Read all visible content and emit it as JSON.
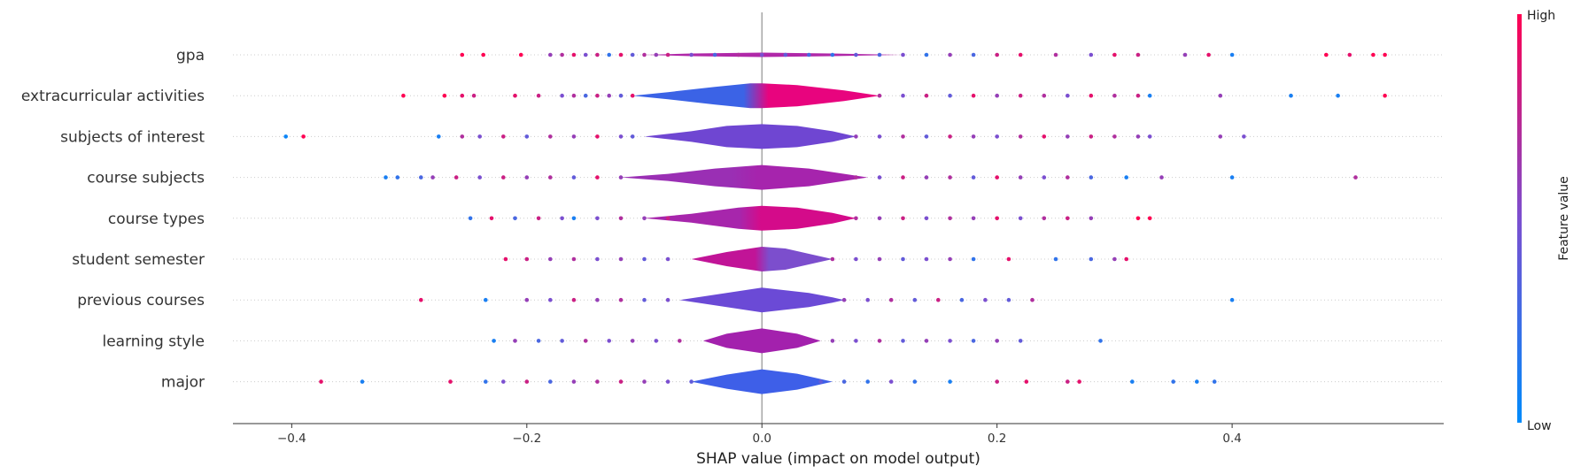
{
  "chart_data": {
    "type": "scatter",
    "subtype": "shap-violin-summary",
    "title": "",
    "xlabel": "SHAP value (impact on model output)",
    "xlim": [
      -0.45,
      0.58
    ],
    "x_ticks": [
      -0.4,
      -0.2,
      0.0,
      0.2,
      0.4
    ],
    "x_tick_labels": [
      "−0.4",
      "−0.2",
      "0.0",
      "0.2",
      "0.4"
    ],
    "grid": "dotted horizontal lines per feature",
    "zero_line": true,
    "colorbar": {
      "label": "Feature value",
      "high_label": "High",
      "low_label": "Low",
      "low_color": "#008bfb",
      "mid_color": "#7b4fd0",
      "high_color": "#ff0052"
    },
    "features": [
      {
        "name": "gpa",
        "violin_half_height": [
          [
            -0.1,
            0
          ],
          [
            -0.06,
            1.5
          ],
          [
            0.0,
            2.5
          ],
          [
            0.06,
            1.5
          ],
          [
            0.12,
            0
          ]
        ],
        "violin_color_low_side": "#b028a8",
        "violin_color_high_side": "#b028a8",
        "points": [
          [
            -0.255,
            1
          ],
          [
            -0.237,
            1
          ],
          [
            -0.205,
            1
          ],
          [
            -0.18,
            0.6
          ],
          [
            -0.17,
            0.7
          ],
          [
            -0.16,
            0.9
          ],
          [
            -0.15,
            0.5
          ],
          [
            -0.14,
            0.8
          ],
          [
            -0.13,
            0.2
          ],
          [
            -0.12,
            0.9
          ],
          [
            -0.11,
            0.4
          ],
          [
            -0.1,
            0.7
          ],
          [
            -0.09,
            0.6
          ],
          [
            -0.08,
            0.8
          ],
          [
            -0.06,
            0.5
          ],
          [
            -0.04,
            0.3
          ],
          [
            -0.02,
            0.7
          ],
          [
            0.0,
            0.5
          ],
          [
            0.02,
            0.4
          ],
          [
            0.04,
            0.3
          ],
          [
            0.06,
            0.2
          ],
          [
            0.08,
            0.4
          ],
          [
            0.1,
            0.3
          ],
          [
            0.12,
            0.5
          ],
          [
            0.14,
            0.2
          ],
          [
            0.16,
            0.6
          ],
          [
            0.18,
            0.3
          ],
          [
            0.2,
            0.8
          ],
          [
            0.22,
            0.9
          ],
          [
            0.25,
            0.7
          ],
          [
            0.28,
            0.5
          ],
          [
            0.3,
            0.9
          ],
          [
            0.32,
            0.8
          ],
          [
            0.36,
            0.6
          ],
          [
            0.38,
            0.9
          ],
          [
            0.4,
            0.1
          ],
          [
            0.48,
            1
          ],
          [
            0.5,
            0.9
          ],
          [
            0.52,
            1
          ],
          [
            0.53,
            1
          ]
        ]
      },
      {
        "name": "extracurricular activities",
        "violin_half_height": [
          [
            -0.11,
            0
          ],
          [
            -0.08,
            4
          ],
          [
            -0.04,
            10
          ],
          [
            -0.01,
            14
          ],
          [
            0.0,
            14
          ],
          [
            0.03,
            12
          ],
          [
            0.07,
            6
          ],
          [
            0.09,
            2
          ],
          [
            0.1,
            0
          ]
        ],
        "violin_color_low_side": "#3b63e6",
        "violin_color_high_side": "#e8047e",
        "points": [
          [
            -0.305,
            1
          ],
          [
            -0.27,
            1
          ],
          [
            -0.255,
            0.9
          ],
          [
            -0.245,
            0.8
          ],
          [
            -0.21,
            0.9
          ],
          [
            -0.19,
            0.8
          ],
          [
            -0.17,
            0.5
          ],
          [
            -0.16,
            0.7
          ],
          [
            -0.15,
            0.3
          ],
          [
            -0.14,
            0.8
          ],
          [
            -0.13,
            0.6
          ],
          [
            -0.12,
            0.4
          ],
          [
            -0.11,
            0.9
          ],
          [
            0.1,
            0.7
          ],
          [
            0.12,
            0.5
          ],
          [
            0.14,
            0.8
          ],
          [
            0.16,
            0.4
          ],
          [
            0.18,
            0.9
          ],
          [
            0.2,
            0.6
          ],
          [
            0.22,
            0.8
          ],
          [
            0.24,
            0.7
          ],
          [
            0.26,
            0.5
          ],
          [
            0.28,
            0.9
          ],
          [
            0.3,
            0.7
          ],
          [
            0.32,
            0.8
          ],
          [
            0.33,
            0.1
          ],
          [
            0.39,
            0.6
          ],
          [
            0.45,
            0.1
          ],
          [
            0.49,
            0.1
          ],
          [
            0.53,
            1
          ]
        ]
      },
      {
        "name": "subjects of interest",
        "violin_half_height": [
          [
            -0.1,
            0
          ],
          [
            -0.06,
            6
          ],
          [
            -0.03,
            12
          ],
          [
            0.0,
            14
          ],
          [
            0.03,
            12
          ],
          [
            0.06,
            6
          ],
          [
            0.08,
            0
          ]
        ],
        "violin_color_low_side": "#6f46d2",
        "violin_color_high_side": "#6f46d2",
        "points": [
          [
            -0.405,
            0.05
          ],
          [
            -0.39,
            1
          ],
          [
            -0.275,
            0.1
          ],
          [
            -0.255,
            0.7
          ],
          [
            -0.24,
            0.5
          ],
          [
            -0.22,
            0.8
          ],
          [
            -0.2,
            0.4
          ],
          [
            -0.18,
            0.7
          ],
          [
            -0.16,
            0.6
          ],
          [
            -0.14,
            0.9
          ],
          [
            -0.12,
            0.5
          ],
          [
            -0.11,
            0.4
          ],
          [
            0.08,
            0.6
          ],
          [
            0.1,
            0.5
          ],
          [
            0.12,
            0.7
          ],
          [
            0.14,
            0.4
          ],
          [
            0.16,
            0.8
          ],
          [
            0.18,
            0.6
          ],
          [
            0.2,
            0.5
          ],
          [
            0.22,
            0.7
          ],
          [
            0.24,
            0.9
          ],
          [
            0.26,
            0.6
          ],
          [
            0.28,
            0.8
          ],
          [
            0.3,
            0.7
          ],
          [
            0.32,
            0.6
          ],
          [
            0.33,
            0.5
          ],
          [
            0.39,
            0.6
          ],
          [
            0.41,
            0.5
          ]
        ]
      },
      {
        "name": "course subjects",
        "violin_half_height": [
          [
            -0.12,
            0
          ],
          [
            -0.08,
            4
          ],
          [
            -0.04,
            10
          ],
          [
            0.0,
            14
          ],
          [
            0.04,
            10
          ],
          [
            0.07,
            4
          ],
          [
            0.09,
            0
          ]
        ],
        "violin_color_low_side": "#9a2fb4",
        "violin_color_high_side": "#a624ad",
        "points": [
          [
            -0.32,
            0.1
          ],
          [
            -0.31,
            0.2
          ],
          [
            -0.29,
            0.3
          ],
          [
            -0.28,
            0.6
          ],
          [
            -0.26,
            0.8
          ],
          [
            -0.24,
            0.5
          ],
          [
            -0.22,
            0.8
          ],
          [
            -0.2,
            0.6
          ],
          [
            -0.18,
            0.7
          ],
          [
            -0.16,
            0.4
          ],
          [
            -0.14,
            0.9
          ],
          [
            -0.12,
            0.6
          ],
          [
            0.08,
            0.7
          ],
          [
            0.1,
            0.5
          ],
          [
            0.12,
            0.8
          ],
          [
            0.14,
            0.6
          ],
          [
            0.16,
            0.7
          ],
          [
            0.18,
            0.4
          ],
          [
            0.2,
            0.9
          ],
          [
            0.22,
            0.6
          ],
          [
            0.24,
            0.5
          ],
          [
            0.26,
            0.7
          ],
          [
            0.28,
            0.3
          ],
          [
            0.31,
            0.1
          ],
          [
            0.34,
            0.6
          ],
          [
            0.4,
            0.1
          ],
          [
            0.505,
            0.7
          ]
        ]
      },
      {
        "name": "course types",
        "violin_half_height": [
          [
            -0.1,
            0
          ],
          [
            -0.06,
            5
          ],
          [
            -0.02,
            12
          ],
          [
            0.0,
            14
          ],
          [
            0.03,
            12
          ],
          [
            0.06,
            6
          ],
          [
            0.08,
            0
          ]
        ],
        "violin_color_low_side": "#a726ac",
        "violin_color_high_side": "#d40b8a",
        "points": [
          [
            -0.248,
            0.2
          ],
          [
            -0.23,
            0.9
          ],
          [
            -0.21,
            0.3
          ],
          [
            -0.19,
            0.8
          ],
          [
            -0.17,
            0.5
          ],
          [
            -0.16,
            0.1
          ],
          [
            -0.14,
            0.5
          ],
          [
            -0.12,
            0.7
          ],
          [
            -0.1,
            0.6
          ],
          [
            -0.08,
            0.8
          ],
          [
            0.08,
            0.7
          ],
          [
            0.1,
            0.6
          ],
          [
            0.12,
            0.8
          ],
          [
            0.14,
            0.5
          ],
          [
            0.16,
            0.7
          ],
          [
            0.18,
            0.6
          ],
          [
            0.2,
            0.9
          ],
          [
            0.22,
            0.5
          ],
          [
            0.24,
            0.7
          ],
          [
            0.26,
            0.8
          ],
          [
            0.28,
            0.6
          ],
          [
            0.32,
            1
          ],
          [
            0.33,
            1
          ]
        ]
      },
      {
        "name": "student semester",
        "violin_half_height": [
          [
            -0.06,
            0
          ],
          [
            -0.03,
            8
          ],
          [
            0.0,
            14
          ],
          [
            0.02,
            12
          ],
          [
            0.04,
            6
          ],
          [
            0.06,
            0
          ]
        ],
        "violin_color_low_side": "#c11497",
        "violin_color_high_side": "#7c4ecd",
        "points": [
          [
            -0.218,
            0.9
          ],
          [
            -0.2,
            0.8
          ],
          [
            -0.18,
            0.6
          ],
          [
            -0.16,
            0.7
          ],
          [
            -0.14,
            0.5
          ],
          [
            -0.12,
            0.6
          ],
          [
            -0.1,
            0.4
          ],
          [
            -0.08,
            0.5
          ],
          [
            0.06,
            0.7
          ],
          [
            0.08,
            0.5
          ],
          [
            0.1,
            0.6
          ],
          [
            0.12,
            0.4
          ],
          [
            0.14,
            0.5
          ],
          [
            0.16,
            0.6
          ],
          [
            0.18,
            0.2
          ],
          [
            0.21,
            0.9
          ],
          [
            0.25,
            0.2
          ],
          [
            0.28,
            0.3
          ],
          [
            0.3,
            0.6
          ],
          [
            0.31,
            0.9
          ]
        ]
      },
      {
        "name": "previous courses",
        "violin_half_height": [
          [
            -0.07,
            0
          ],
          [
            -0.04,
            6
          ],
          [
            0.0,
            14
          ],
          [
            0.04,
            8
          ],
          [
            0.06,
            3
          ],
          [
            0.07,
            0
          ]
        ],
        "violin_color_low_side": "#6b4ad6",
        "violin_color_high_side": "#6b4ad6",
        "points": [
          [
            -0.29,
            0.9
          ],
          [
            -0.235,
            0.1
          ],
          [
            -0.2,
            0.6
          ],
          [
            -0.18,
            0.5
          ],
          [
            -0.16,
            0.8
          ],
          [
            -0.14,
            0.6
          ],
          [
            -0.12,
            0.7
          ],
          [
            -0.1,
            0.4
          ],
          [
            -0.08,
            0.5
          ],
          [
            0.07,
            0.6
          ],
          [
            0.09,
            0.5
          ],
          [
            0.11,
            0.7
          ],
          [
            0.13,
            0.4
          ],
          [
            0.15,
            0.8
          ],
          [
            0.17,
            0.3
          ],
          [
            0.19,
            0.5
          ],
          [
            0.21,
            0.4
          ],
          [
            0.23,
            0.7
          ],
          [
            0.4,
            0.1
          ]
        ]
      },
      {
        "name": "learning style",
        "violin_half_height": [
          [
            -0.05,
            0
          ],
          [
            -0.03,
            8
          ],
          [
            0.0,
            14
          ],
          [
            0.03,
            8
          ],
          [
            0.05,
            0
          ]
        ],
        "violin_color_low_side": "#a321ad",
        "violin_color_high_side": "#a321ad",
        "points": [
          [
            -0.228,
            0.1
          ],
          [
            -0.21,
            0.6
          ],
          [
            -0.19,
            0.3
          ],
          [
            -0.17,
            0.4
          ],
          [
            -0.15,
            0.7
          ],
          [
            -0.13,
            0.5
          ],
          [
            -0.11,
            0.6
          ],
          [
            -0.09,
            0.5
          ],
          [
            -0.07,
            0.7
          ],
          [
            0.06,
            0.6
          ],
          [
            0.08,
            0.5
          ],
          [
            0.1,
            0.7
          ],
          [
            0.12,
            0.4
          ],
          [
            0.14,
            0.6
          ],
          [
            0.16,
            0.5
          ],
          [
            0.18,
            0.3
          ],
          [
            0.2,
            0.6
          ],
          [
            0.22,
            0.4
          ],
          [
            0.288,
            0.2
          ]
        ]
      },
      {
        "name": "major",
        "violin_half_height": [
          [
            -0.06,
            0
          ],
          [
            -0.03,
            8
          ],
          [
            0.0,
            14
          ],
          [
            0.03,
            9
          ],
          [
            0.05,
            3
          ],
          [
            0.06,
            0
          ]
        ],
        "violin_color_low_side": "#3e5fe8",
        "violin_color_high_side": "#3e5fe8",
        "points": [
          [
            -0.375,
            0.9
          ],
          [
            -0.34,
            0.1
          ],
          [
            -0.265,
            0.9
          ],
          [
            -0.235,
            0.2
          ],
          [
            -0.22,
            0.5
          ],
          [
            -0.2,
            0.8
          ],
          [
            -0.18,
            0.3
          ],
          [
            -0.16,
            0.6
          ],
          [
            -0.14,
            0.7
          ],
          [
            -0.12,
            0.8
          ],
          [
            -0.1,
            0.6
          ],
          [
            -0.08,
            0.5
          ],
          [
            -0.06,
            0.4
          ],
          [
            0.05,
            0.4
          ],
          [
            0.07,
            0.3
          ],
          [
            0.09,
            0.2
          ],
          [
            0.11,
            0.5
          ],
          [
            0.13,
            0.2
          ],
          [
            0.16,
            0.1
          ],
          [
            0.2,
            0.8
          ],
          [
            0.225,
            0.9
          ],
          [
            0.26,
            0.8
          ],
          [
            0.27,
            0.9
          ],
          [
            0.315,
            0.1
          ],
          [
            0.35,
            0.2
          ],
          [
            0.37,
            0.1
          ],
          [
            0.385,
            0.2
          ]
        ]
      }
    ]
  }
}
